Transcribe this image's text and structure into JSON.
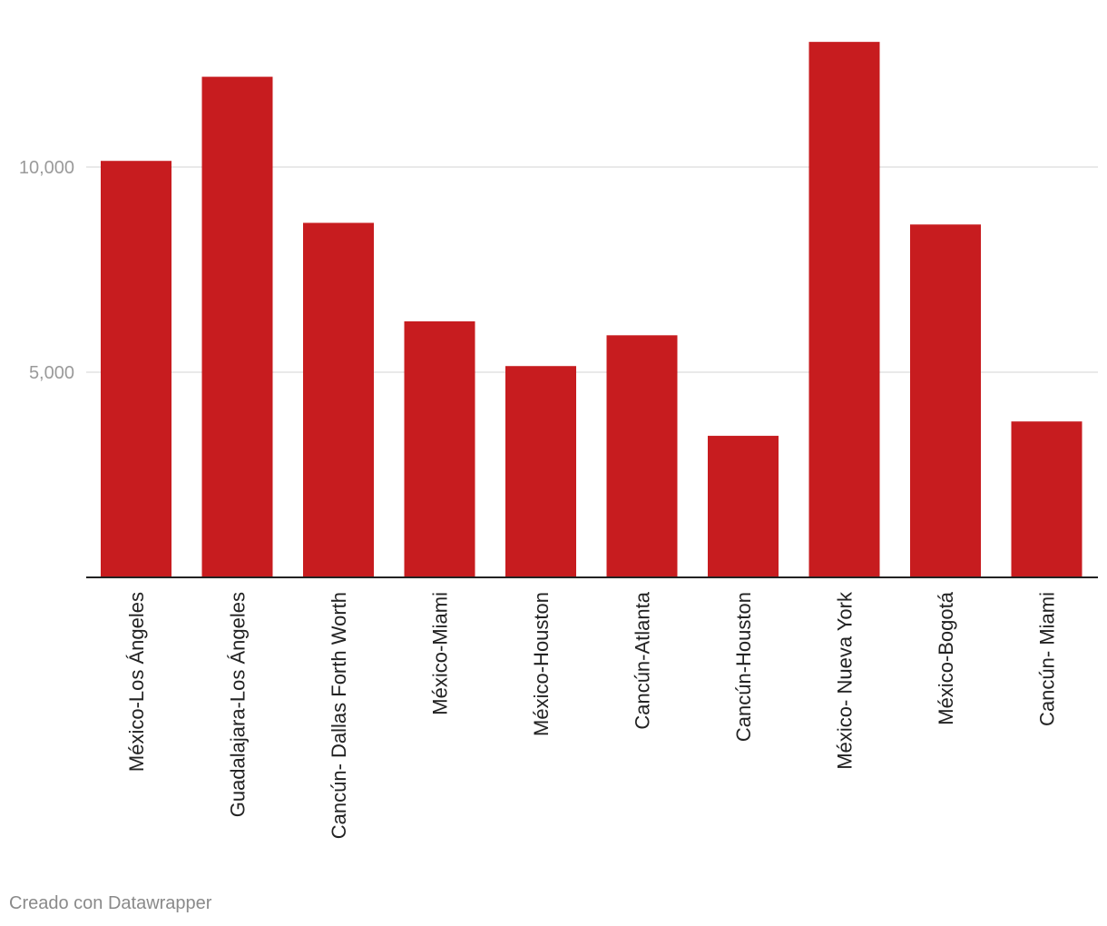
{
  "chart_data": {
    "type": "bar",
    "categories": [
      "México-Los Ángeles",
      "Guadalajara-Los Ángeles",
      "Cancún- Dallas Forth Worth",
      "México-Miami",
      "México-Houston",
      "Cancún-Atlanta",
      "Cancún-Houston",
      "México- Nueva York",
      "México-Bogotá",
      "Cancún- Miami"
    ],
    "values": [
      10150,
      12200,
      8640,
      6240,
      5150,
      5900,
      3450,
      13050,
      8600,
      3800
    ],
    "yticks": [
      5000,
      10000
    ],
    "ytick_labels": [
      "5,000",
      "10,000"
    ],
    "ylim": [
      0,
      13500
    ],
    "title": "",
    "xlabel": "",
    "ylabel": "",
    "bar_color": "#c71c1f",
    "grid": true
  },
  "footer": {
    "credit": "Creado con Datawrapper"
  }
}
